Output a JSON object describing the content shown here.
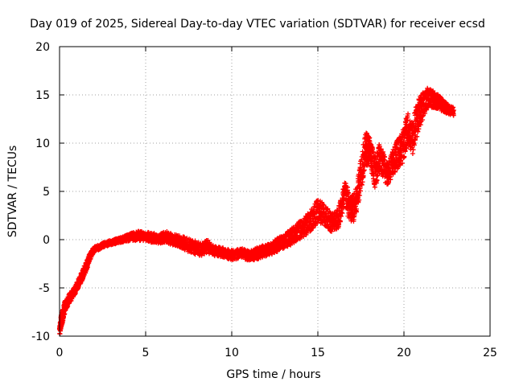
{
  "chart_data": {
    "type": "scatter",
    "title": "Day 019 of 2025, Sidereal Day-to-day VTEC variation (SDTVAR) for receiver ecsd",
    "xlabel": "GPS time / hours",
    "ylabel": "SDTVAR / TECUs",
    "xlim": [
      0,
      25
    ],
    "ylim": [
      -10,
      20
    ],
    "xticks": [
      0,
      5,
      10,
      15,
      20,
      25
    ],
    "yticks": [
      -10,
      -5,
      0,
      5,
      10,
      15,
      20
    ],
    "grid": true,
    "marker": "+",
    "colors": {
      "series": "#ff0000",
      "grid": "#a0a0a0",
      "axis": "#000000"
    },
    "series": [
      {
        "name": "SDTVAR",
        "x": [
          0.0,
          0.1,
          0.2,
          0.3,
          0.5,
          0.7,
          0.9,
          1.1,
          1.3,
          1.5,
          1.7,
          2.0,
          2.3,
          2.6,
          3.0,
          3.4,
          3.8,
          4.2,
          4.6,
          5.0,
          5.4,
          5.8,
          6.2,
          6.6,
          7.0,
          7.4,
          7.8,
          8.2,
          8.6,
          9.0,
          9.4,
          9.8,
          10.2,
          10.6,
          11.0,
          11.4,
          11.8,
          12.2,
          12.6,
          13.0,
          13.4,
          13.8,
          14.2,
          14.6,
          15.0,
          15.4,
          15.8,
          16.2,
          16.6,
          16.9,
          17.2,
          17.5,
          17.8,
          18.0,
          18.3,
          18.6,
          19.0,
          19.3,
          19.6,
          19.9,
          20.2,
          20.5,
          20.8,
          21.1,
          21.4,
          21.7,
          22.0,
          22.3,
          22.6,
          22.9
        ],
        "y": [
          -9.5,
          -8.5,
          -7.8,
          -7.0,
          -6.3,
          -5.8,
          -5.2,
          -4.5,
          -3.8,
          -3.0,
          -2.0,
          -1.0,
          -0.8,
          -0.5,
          -0.3,
          -0.1,
          0.1,
          0.3,
          0.4,
          0.3,
          0.2,
          0.1,
          0.3,
          0.0,
          -0.2,
          -0.5,
          -0.8,
          -1.0,
          -0.7,
          -1.2,
          -1.3,
          -1.5,
          -1.6,
          -1.4,
          -1.7,
          -1.5,
          -1.2,
          -1.0,
          -0.6,
          -0.2,
          0.2,
          0.8,
          1.3,
          2.0,
          3.0,
          2.5,
          1.8,
          2.3,
          4.8,
          3.0,
          3.5,
          7.0,
          9.5,
          9.2,
          7.0,
          8.5,
          6.8,
          7.8,
          8.8,
          9.5,
          11.5,
          10.5,
          12.8,
          14.0,
          14.8,
          14.5,
          14.3,
          13.8,
          13.5,
          13.2
        ],
        "spread": [
          1.0,
          1.2,
          1.2,
          1.2,
          1.0,
          1.0,
          0.9,
          0.9,
          0.9,
          0.9,
          0.8,
          0.5,
          0.5,
          0.5,
          0.5,
          0.5,
          0.6,
          0.8,
          1.0,
          1.0,
          1.0,
          1.0,
          1.2,
          1.2,
          1.2,
          1.4,
          1.4,
          1.4,
          1.4,
          1.0,
          1.0,
          1.0,
          1.0,
          1.0,
          1.0,
          1.2,
          1.2,
          1.2,
          1.4,
          1.4,
          1.6,
          1.8,
          2.0,
          2.2,
          2.4,
          2.4,
          2.0,
          2.2,
          2.8,
          3.0,
          3.0,
          3.5,
          3.5,
          3.2,
          3.2,
          3.0,
          2.6,
          2.6,
          3.0,
          3.2,
          3.4,
          3.6,
          3.4,
          2.8,
          2.0,
          1.8,
          1.5,
          1.2,
          1.0,
          1.0
        ]
      }
    ]
  }
}
